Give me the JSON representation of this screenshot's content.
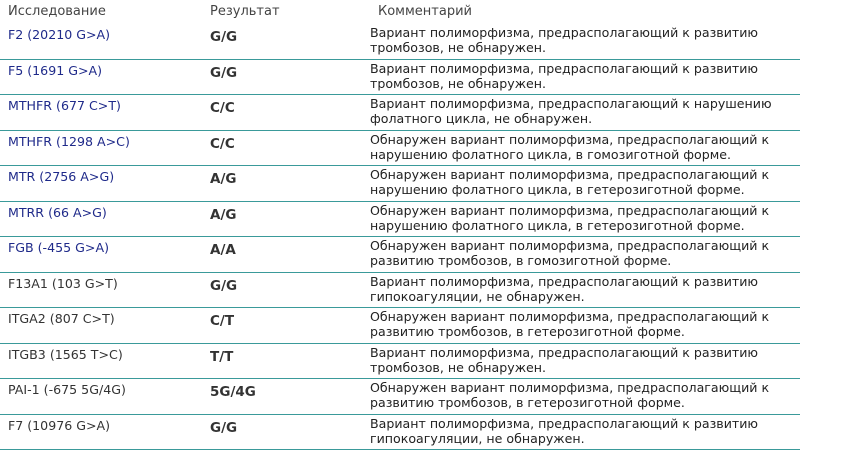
{
  "table": {
    "headers": [
      "Исследование",
      "Результат",
      "Комментарий"
    ],
    "rows": [
      {
        "test": "F2 (20210 G>A)",
        "result": "G/G",
        "comment": [
          "Вариант полиморфизма, предрасполагающий к развитию",
          "тромбозов, не обнаружен."
        ],
        "color": "#1f2a8a"
      },
      {
        "test": "F5 (1691 G>A)",
        "result": "G/G",
        "comment": [
          "Вариант полиморфизма, предрасполагающий к развитию",
          "тромбозов, не обнаружен."
        ],
        "color": "#1f2a8a"
      },
      {
        "test": "MTHFR (677 C>T)",
        "result": "C/C",
        "comment": [
          "Вариант полиморфизма, предрасполагающий к нарушению",
          "фолатного цикла, не обнаружен."
        ],
        "color": "#1f2a8a"
      },
      {
        "test": "MTHFR (1298 A>C)",
        "result": "C/C",
        "comment": [
          "Обнаружен вариант полиморфизма, предрасполагающий к",
          "нарушению фолатного цикла, в гомозиготной форме."
        ],
        "color": "#1f2a8a"
      },
      {
        "test": "MTR (2756 A>G)",
        "result": "A/G",
        "comment": [
          "Обнаружен вариант полиморфизма, предрасполагающий к",
          "нарушению фолатного цикла, в гетерозиготной форме."
        ],
        "color": "#1f2a8a"
      },
      {
        "test": "MTRR (66 A>G)",
        "result": "A/G",
        "comment": [
          "Обнаружен вариант полиморфизма, предрасполагающий к",
          "нарушению фолатного цикла, в гетерозиготной форме."
        ],
        "color": "#1f2a8a"
      },
      {
        "test": "FGB (-455 G>A)",
        "result": "A/A",
        "comment": [
          "Обнаружен вариант полиморфизма, предрасполагающий к",
          "развитию тромбозов, в гомозиготной форме."
        ],
        "color": "#1f2a8a"
      },
      {
        "test": "F13A1 (103 G>T)",
        "result": "G/G",
        "comment": [
          "Вариант полиморфизма, предрасполагающий к развитию",
          "гипокоагуляции, не обнаружен."
        ],
        "color": "#333333"
      },
      {
        "test": "ITGA2 (807 C>T)",
        "result": "C/T",
        "comment": [
          "Обнаружен вариант полиморфизма, предрасполагающий к",
          "развитию тромбозов, в гетерозиготной форме."
        ],
        "color": "#333333"
      },
      {
        "test": "ITGB3 (1565 T>C)",
        "result": "T/T",
        "comment": [
          "Вариант полиморфизма, предрасполагающий к развитию",
          "тромбозов, не обнаружен."
        ],
        "color": "#333333"
      },
      {
        "test": "PAI-1 (-675 5G/4G)",
        "result": "5G/4G",
        "comment": [
          "Обнаружен вариант полиморфизма, предрасполагающий к",
          "развитию тромбозов, в гетерозиготной форме."
        ],
        "color": "#333333"
      },
      {
        "test": "F7 (10976 G>A)",
        "result": "G/G",
        "comment": [
          "Вариант полиморфизма, предрасполагающий к развитию",
          "гипокоагуляции, не обнаружен."
        ],
        "color": "#333333"
      }
    ]
  }
}
